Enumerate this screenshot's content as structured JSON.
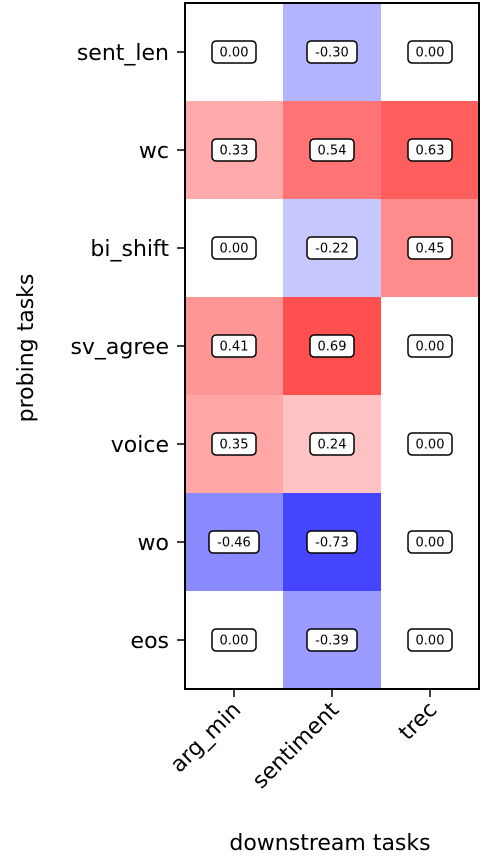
{
  "chart_data": {
    "type": "heatmap",
    "title": "",
    "xlabel": "downstream tasks",
    "ylabel": "probing tasks",
    "x_categories": [
      "arg_min",
      "sentiment",
      "trec"
    ],
    "y_categories": [
      "sent_len",
      "wc",
      "bi_shift",
      "sv_agree",
      "voice",
      "wo",
      "eos"
    ],
    "values": [
      [
        0.0,
        -0.3,
        0.0
      ],
      [
        0.33,
        0.54,
        0.63
      ],
      [
        0.0,
        -0.22,
        0.45
      ],
      [
        0.41,
        0.69,
        0.0
      ],
      [
        0.35,
        0.24,
        0.0
      ],
      [
        -0.46,
        -0.73,
        0.0
      ],
      [
        0.0,
        -0.39,
        0.0
      ]
    ],
    "value_labels": [
      [
        "0.00",
        "-0.30",
        "0.00"
      ],
      [
        "0.33",
        "0.54",
        "0.63"
      ],
      [
        "0.00",
        "-0.22",
        "0.45"
      ],
      [
        "0.41",
        "0.69",
        "0.00"
      ],
      [
        "0.35",
        "0.24",
        "0.00"
      ],
      [
        "-0.46",
        "-0.73",
        "0.00"
      ],
      [
        "0.00",
        "-0.39",
        "0.00"
      ]
    ],
    "colormap": "bwr",
    "vlim": [
      -1,
      1
    ],
    "grid": false,
    "legend": "none"
  }
}
